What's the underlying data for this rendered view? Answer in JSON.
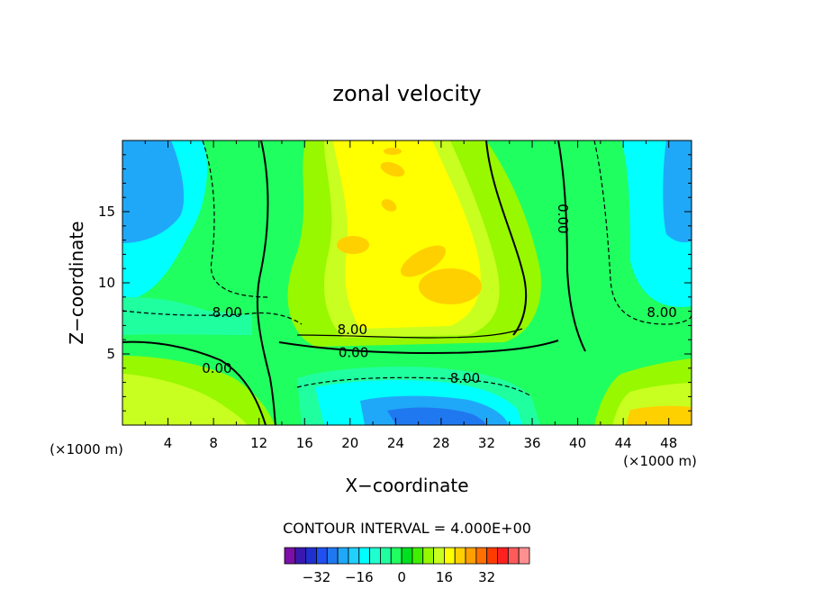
{
  "chart_data": {
    "type": "contour",
    "title": "zonal velocity",
    "xlabel": "X−coordinate",
    "ylabel": "Z−coordinate",
    "x_unit_left": "(×1000 m)",
    "x_unit_right": "(×1000 m)",
    "xlim": [
      0,
      50
    ],
    "ylim": [
      0,
      20
    ],
    "x_ticks": [
      4,
      8,
      12,
      16,
      20,
      24,
      28,
      32,
      36,
      40,
      44,
      48
    ],
    "y_ticks": [
      5,
      10,
      15
    ],
    "contour_interval_text": "CONTOUR INTERVAL = 4.000E+00",
    "contour_labels": [
      {
        "text": "8.00",
        "x": 9.2,
        "y": 7.9
      },
      {
        "text": "8.00",
        "x": 20.2,
        "y": 6.7
      },
      {
        "text": "0.00",
        "x": 20.3,
        "y": 5.1
      },
      {
        "text": "0.00",
        "x": 8.3,
        "y": 4.0
      },
      {
        "text": "8.00",
        "x": 30.1,
        "y": 3.3
      },
      {
        "text": "0.00",
        "x": 38.7,
        "y": 14.5
      },
      {
        "text": "8.00",
        "x": 47.4,
        "y": 7.9
      }
    ],
    "colorbar": {
      "levels": [
        -40,
        -36,
        -32,
        -28,
        -24,
        -20,
        -16,
        -12,
        -8,
        -4,
        0,
        4,
        8,
        12,
        16,
        20,
        24,
        28,
        32,
        36,
        40
      ],
      "colors": [
        "#7b0fa8",
        "#3a18b0",
        "#2030d0",
        "#2050f0",
        "#2078f0",
        "#20a8f8",
        "#20d0ff",
        "#00ffff",
        "#20ffd0",
        "#20ffa0",
        "#20ff60",
        "#00e020",
        "#40f000",
        "#98f800",
        "#c8ff20",
        "#ffff00",
        "#ffd000",
        "#ffa000",
        "#ff7000",
        "#ff3c00",
        "#ff2020",
        "#ff5a5a",
        "#ff9090"
      ],
      "tick_labels": [
        "−32",
        "−16",
        "0",
        "16",
        "32"
      ],
      "tick_values": [
        -32,
        -16,
        0,
        16,
        32
      ]
    }
  }
}
